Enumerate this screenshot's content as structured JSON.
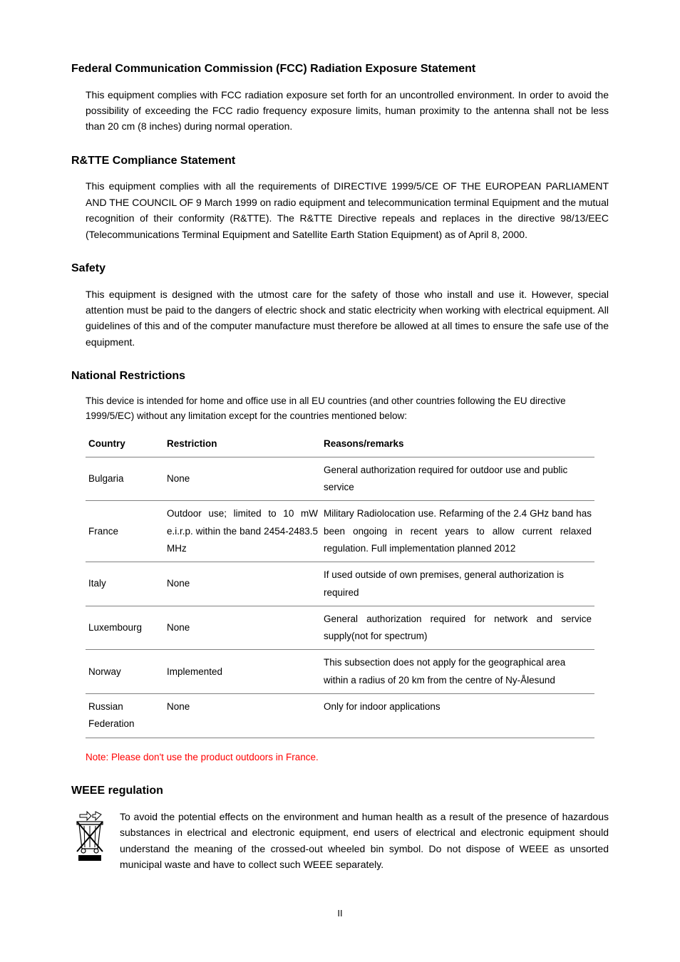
{
  "fcc": {
    "heading": "Federal Communication Commission (FCC) Radiation Exposure Statement",
    "body": "This equipment complies with FCC radiation exposure set forth for an uncontrolled environment. In order to avoid the possibility of exceeding the FCC radio frequency exposure limits, human proximity to the antenna shall not be less than 20 cm (8 inches) during normal operation."
  },
  "rtte": {
    "heading": "R&TTE Compliance Statement",
    "body": "This equipment complies with all the requirements of DIRECTIVE 1999/5/CE OF THE EUROPEAN PARLIAMENT AND THE COUNCIL OF 9 March 1999 on radio equipment and telecommunication terminal Equipment and the mutual recognition of their conformity (R&TTE). The R&TTE Directive repeals and replaces in the directive 98/13/EEC (Telecommunications Terminal Equipment and Satellite Earth Station Equipment) as of April 8, 2000."
  },
  "safety": {
    "heading": "Safety",
    "body": "This equipment is designed with the utmost care for the safety of those who install and use it. However, special attention must be paid to the dangers of electric shock and static electricity when working with electrical equipment. All guidelines of this and of the computer manufacture must therefore be allowed at all times to ensure the safe use of the equipment."
  },
  "national": {
    "heading": "National Restrictions",
    "intro": "This device is intended for home and office use in all EU countries (and other countries following the EU directive 1999/5/EC) without any limitation except for the countries mentioned below:",
    "columns": [
      "Country",
      "Restriction",
      "Reasons/remarks"
    ],
    "rows": [
      {
        "country": "Bulgaria",
        "restriction": "None",
        "remarks": "General authorization required for outdoor use and public service",
        "restriction_justify": false,
        "remarks_justify": false
      },
      {
        "country": "France",
        "restriction": "Outdoor use; limited to 10 mW e.i.r.p. within the band 2454-2483.5 MHz",
        "remarks": "Military Radiolocation use. Refarming of the 2.4 GHz band has been ongoing in recent years to allow current relaxed regulation. Full implementation planned 2012",
        "restriction_justify": true,
        "remarks_justify": true
      },
      {
        "country": "Italy",
        "restriction": "None",
        "remarks": "If used outside of own premises, general authorization is required",
        "restriction_justify": false,
        "remarks_justify": false
      },
      {
        "country": "Luxembourg",
        "restriction": "None",
        "remarks": "General authorization required for network and service supply(not for spectrum)",
        "restriction_justify": false,
        "remarks_justify": true
      },
      {
        "country": "Norway",
        "restriction": "Implemented",
        "remarks": "This subsection does not apply for the geographical area within a radius of 20 km from the centre of Ny-Ålesund",
        "restriction_justify": false,
        "remarks_justify": false
      },
      {
        "country": "Russian Federation",
        "restriction": "None",
        "remarks": "Only for indoor applications",
        "restriction_justify": false,
        "remarks_justify": false
      }
    ],
    "note": "Note: Please don't use the product outdoors in France."
  },
  "weee": {
    "heading": "WEEE regulation",
    "body": "To avoid the potential effects on the environment and human health as a result of the presence of hazardous substances in electrical and electronic equipment, end users of electrical and electronic equipment should understand the meaning of the crossed-out wheeled bin symbol. Do not dispose of WEEE as unsorted municipal waste and have to collect such WEEE separately."
  },
  "page_number": "II"
}
